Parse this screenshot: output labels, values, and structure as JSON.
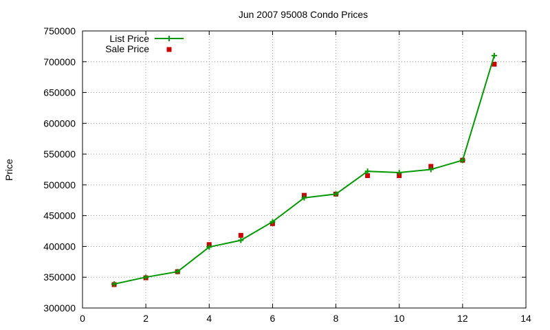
{
  "chart_data": {
    "type": "line",
    "title": "Jun 2007 95008 Condo Prices",
    "xlabel": "",
    "ylabel": "Price",
    "xlim": [
      0,
      14
    ],
    "ylim": [
      300000,
      750000
    ],
    "x_ticks": [
      0,
      2,
      4,
      6,
      8,
      10,
      12,
      14
    ],
    "y_ticks": [
      300000,
      350000,
      400000,
      450000,
      500000,
      550000,
      600000,
      650000,
      700000,
      750000
    ],
    "x_tick_labels": [
      "0",
      "2",
      "4",
      "6",
      "8",
      "10",
      "12",
      "14"
    ],
    "y_tick_labels": [
      "300000",
      "350000",
      "400000",
      "450000",
      "500000",
      "550000",
      "600000",
      "650000",
      "700000",
      "750000"
    ],
    "grid": true,
    "legend_position": "top-left",
    "series": [
      {
        "name": "List Price",
        "style": "linespoints",
        "marker": "plus",
        "color": "#009900",
        "x": [
          1,
          2,
          3,
          4,
          5,
          6,
          7,
          8,
          9,
          10,
          11,
          12,
          13
        ],
        "y": [
          339000,
          350000,
          359000,
          399000,
          410000,
          440000,
          479000,
          485000,
          522000,
          520000,
          525000,
          540000,
          710000
        ]
      },
      {
        "name": "Sale Price",
        "style": "points",
        "marker": "square",
        "color": "#cc0000",
        "x": [
          1,
          2,
          3,
          4,
          5,
          6,
          7,
          8,
          9,
          10,
          11,
          12,
          13
        ],
        "y": [
          338000,
          349000,
          359000,
          403000,
          418000,
          437000,
          483000,
          485000,
          515000,
          515000,
          530000,
          540000,
          696000
        ]
      }
    ]
  }
}
